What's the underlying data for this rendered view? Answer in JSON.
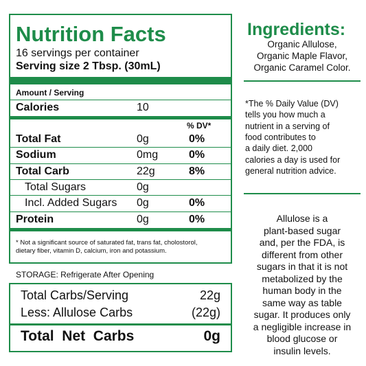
{
  "label": {
    "title": "Nutrition Facts",
    "servings": "16 servings per container",
    "serving_size": "Serving size 2 Tbsp. (30mL)",
    "amount_header": "Amount / Serving",
    "calories": {
      "name": "Calories",
      "amount": "10"
    },
    "dv_header": "% DV*",
    "rows": [
      {
        "name": "Total Fat",
        "amount": "0g",
        "dv": "0%"
      },
      {
        "name": "Sodium",
        "amount": "0mg",
        "dv": "0%"
      },
      {
        "name": "Total Carb",
        "amount": "22g",
        "dv": "8%"
      },
      {
        "name": "Total Sugars",
        "amount": "0g"
      },
      {
        "name": "Incl. Added Sugars",
        "amount": "0g",
        "dv": "0%"
      },
      {
        "name": "Protein",
        "amount": "0g",
        "dv": "0%"
      }
    ],
    "footnote": [
      "* Not a significant source of saturated fat, trans fat, cholostorol,",
      "dietary fiber, vitamin D, calcium, iron and potassium."
    ]
  },
  "storage": "STORAGE: Refrigerate After Opening",
  "carbs": {
    "rows": [
      {
        "name": "Total Carbs/Serving",
        "amount": "22g"
      },
      {
        "name": "Less: Allulose Carbs",
        "amount": "(22g)"
      }
    ],
    "total": {
      "name": "Total  Net  Carbs",
      "amount": "0g"
    }
  },
  "ingredients": {
    "title": "Ingredients:",
    "lines": [
      "Organic Allulose,",
      "Organic Maple Flavor,",
      "Organic Caramel Color."
    ]
  },
  "dv_note": [
    "*The % Daily Value (DV)",
    "tells you how much a",
    "nutrient in a serving of",
    "food contributes to",
    "a daily diet. 2,000",
    "calories a day is used for",
    "general nutrition advice."
  ],
  "allulose_note": [
    "Allulose is a",
    "plant-based sugar",
    "and, per the FDA, is",
    "different from other",
    "sugars in that it is not",
    "metabolized by the",
    "human body in the",
    "same way as table",
    "sugar. It produces only",
    "a negligible increase in",
    "blood glucose or",
    "insulin levels."
  ]
}
